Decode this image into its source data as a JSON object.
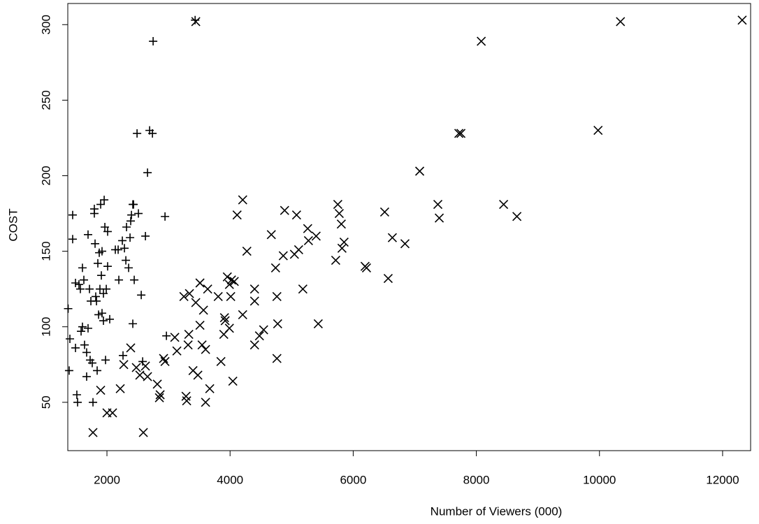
{
  "chart_data": {
    "type": "scatter",
    "x_label": "Number of Viewers (000)",
    "y_label": "COST",
    "xlim": [
      1364,
      12455
    ],
    "ylim": [
      18,
      314
    ],
    "xticks": [
      2000,
      4000,
      6000,
      8000,
      10000,
      12000
    ],
    "yticks": [
      50,
      100,
      150,
      200,
      250,
      300
    ],
    "grid": false,
    "series": [
      {
        "color": "#000000",
        "marker": "plus",
        "x": [
          1370,
          1398,
          1386,
          1443,
          1443,
          1489,
          1489,
          1511,
          1523,
          1545,
          1568,
          1580,
          1602,
          1602,
          1625,
          1636,
          1670,
          1670,
          1693,
          1693,
          1716,
          1727,
          1739,
          1761,
          1773,
          1795,
          1795,
          1807,
          1818,
          1830,
          1841,
          1852,
          1864,
          1875,
          1886,
          1898,
          1909,
          1920,
          1920,
          1943,
          1943,
          1955,
          1966,
          1977,
          1989,
          2011,
          2011,
          2045,
          2136,
          2182,
          2193,
          2250,
          2284,
          2307,
          2318,
          2352,
          2375,
          2386,
          2398,
          2420,
          2432,
          2443,
          2420,
          2489,
          2511,
          2557,
          2580,
          2625,
          2659,
          2693,
          2739,
          2750,
          2943,
          2966,
          2261,
          3432
        ],
        "y": [
          112,
          92,
          71,
          174,
          158,
          129,
          86,
          55,
          50,
          128,
          125,
          97,
          139,
          100,
          131,
          88,
          83,
          67,
          99,
          161,
          125,
          78,
          117,
          76,
          50,
          175,
          178,
          155,
          120,
          117,
          71,
          142,
          108,
          149,
          125,
          181,
          134,
          150,
          109,
          104,
          122,
          184,
          166,
          78,
          125,
          140,
          163,
          105,
          151,
          151,
          131,
          157,
          152,
          144,
          166,
          139,
          159,
          170,
          174,
          181,
          181,
          131,
          102,
          228,
          175,
          121,
          77,
          160,
          202,
          230,
          228,
          289,
          173,
          94,
          81,
          303
        ]
      },
      {
        "color": "#000000",
        "marker": "x",
        "x": [
          1773,
          2000,
          2091,
          1898,
          2216,
          2273,
          2386,
          2477,
          2534,
          2591,
          2625,
          2659,
          2818,
          2852,
          2864,
          2920,
          2943,
          3102,
          3136,
          3250,
          3284,
          3295,
          3318,
          3330,
          3340,
          3398,
          3443,
          3477,
          3511,
          3511,
          3545,
          3568,
          3602,
          3602,
          3636,
          3670,
          3807,
          3852,
          3898,
          3909,
          3920,
          3955,
          3989,
          3989,
          4011,
          4023,
          4045,
          4068,
          4114,
          4205,
          4205,
          4273,
          4398,
          4398,
          4398,
          4477,
          4545,
          4670,
          4739,
          4761,
          4761,
          4773,
          4864,
          4886,
          5045,
          5080,
          5114,
          5182,
          5261,
          5273,
          5398,
          5432,
          5716,
          5750,
          5773,
          5807,
          5818,
          5852,
          6193,
          6216,
          6568,
          6511,
          6636,
          6841,
          7080,
          7375,
          7398,
          7716,
          7750,
          8080,
          8443,
          8659,
          9977,
          10341,
          12318,
          3443
        ],
        "y": [
          30,
          43,
          43,
          58,
          59,
          75,
          86,
          73,
          68,
          30,
          74,
          67,
          62,
          53,
          55,
          79,
          77,
          93,
          84,
          120,
          54,
          51,
          88,
          95,
          122,
          71,
          116,
          68,
          101,
          129,
          88,
          111,
          50,
          85,
          125,
          59,
          120,
          77,
          95,
          106,
          104,
          133,
          99,
          128,
          120,
          131,
          64,
          130,
          174,
          108,
          184,
          150,
          88,
          117,
          125,
          94,
          98,
          161,
          139,
          79,
          120,
          102,
          147,
          177,
          148,
          174,
          151,
          125,
          165,
          157,
          160,
          102,
          144,
          181,
          175,
          168,
          152,
          156,
          140,
          139,
          132,
          176,
          159,
          155,
          203,
          181,
          172,
          228,
          228,
          289,
          181,
          173,
          230,
          302,
          303,
          302
        ]
      }
    ]
  }
}
